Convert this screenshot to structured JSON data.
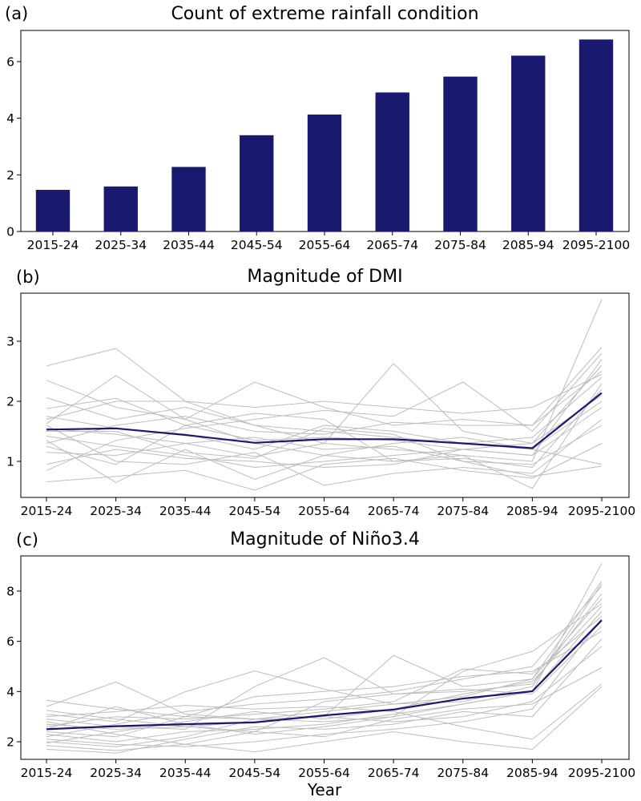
{
  "xlabel": "Year",
  "colors": {
    "bar": "#191970",
    "mean_line": "#191970",
    "member_line": "#bdbdbd"
  },
  "chart_data": [
    {
      "panel_label": "(a)",
      "type": "bar",
      "title": "Count of extreme rainfall condition",
      "categories": [
        "2015-24",
        "2025-34",
        "2035-44",
        "2045-54",
        "2055-64",
        "2065-74",
        "2075-84",
        "2085-94",
        "2095-2100"
      ],
      "values": [
        1.47,
        1.59,
        2.28,
        3.4,
        4.13,
        4.91,
        5.47,
        6.21,
        6.78
      ],
      "ylim": [
        0,
        7.1
      ],
      "yticks": [
        "0",
        "2",
        "4",
        "6"
      ],
      "xlabel": "",
      "ylabel": ""
    },
    {
      "panel_label": "(b)",
      "type": "line",
      "title": "Magnitude of DMI",
      "categories": [
        "2015-24",
        "2025-34",
        "2035-44",
        "2045-54",
        "2055-64",
        "2065-74",
        "2075-84",
        "2085-94",
        "2095-2100"
      ],
      "ylim": [
        0.4,
        3.8
      ],
      "yticks": [
        "1",
        "2",
        "3"
      ],
      "mean": [
        1.53,
        1.55,
        1.44,
        1.31,
        1.37,
        1.37,
        1.3,
        1.22,
        2.14
      ],
      "members": [
        [
          2.59,
          2.88,
          2.0,
          1.6,
          1.5,
          1.4,
          1.3,
          1.2,
          2.0
        ],
        [
          2.35,
          1.9,
          1.7,
          2.32,
          1.9,
          1.6,
          1.7,
          1.6,
          2.9
        ],
        [
          2.06,
          1.7,
          1.9,
          1.6,
          1.3,
          1.2,
          1.1,
          1.0,
          3.7
        ],
        [
          1.88,
          2.05,
          1.6,
          1.35,
          1.4,
          1.35,
          1.2,
          1.1,
          2.7
        ],
        [
          1.75,
          1.55,
          1.45,
          1.2,
          1.6,
          1.5,
          1.3,
          1.4,
          2.4
        ],
        [
          1.63,
          2.43,
          1.7,
          1.3,
          1.1,
          1.0,
          1.05,
          0.9,
          2.2
        ],
        [
          1.55,
          1.45,
          1.3,
          1.08,
          1.3,
          2.63,
          1.5,
          1.3,
          2.6
        ],
        [
          1.42,
          1.25,
          1.1,
          0.9,
          1.0,
          1.1,
          1.2,
          1.1,
          1.9
        ],
        [
          1.3,
          1.6,
          1.75,
          1.5,
          1.45,
          1.65,
          1.6,
          1.6,
          2.5
        ],
        [
          1.15,
          1.1,
          1.3,
          1.4,
          1.2,
          1.25,
          1.0,
          0.95,
          1.6
        ],
        [
          0.95,
          1.2,
          1.05,
          1.0,
          0.9,
          0.95,
          1.2,
          1.3,
          2.1
        ],
        [
          0.85,
          1.35,
          1.55,
          1.7,
          1.85,
          1.75,
          2.32,
          1.5,
          2.8
        ],
        [
          0.66,
          0.75,
          0.85,
          0.52,
          0.95,
          1.05,
          0.85,
          0.72,
          1.3
        ],
        [
          1.6,
          1.0,
          0.95,
          1.15,
          0.6,
          0.8,
          0.9,
          0.8,
          1.7
        ],
        [
          1.7,
          2.0,
          2.0,
          1.9,
          2.0,
          1.9,
          1.8,
          1.9,
          2.45
        ],
        [
          1.35,
          0.65,
          1.2,
          0.7,
          1.1,
          1.3,
          1.4,
          1.2,
          0.95
        ],
        [
          1.5,
          1.5,
          1.15,
          1.05,
          1.55,
          1.45,
          1.0,
          0.75,
          0.92
        ],
        [
          1.25,
          0.95,
          1.6,
          1.8,
          1.7,
          1.0,
          1.1,
          0.55,
          2.3
        ]
      ],
      "xlabel": "",
      "ylabel": ""
    },
    {
      "panel_label": "(c)",
      "type": "line",
      "title": "Magnitude of Niño3.4",
      "categories": [
        "2015-24",
        "2025-34",
        "2035-44",
        "2045-54",
        "2055-64",
        "2065-74",
        "2075-84",
        "2085-94",
        "2095-2100"
      ],
      "ylim": [
        1.3,
        9.4
      ],
      "yticks": [
        "2",
        "4",
        "6",
        "8"
      ],
      "mean": [
        2.5,
        2.62,
        2.7,
        2.77,
        3.05,
        3.28,
        3.72,
        4.01,
        6.84
      ],
      "members": [
        [
          3.65,
          3.3,
          3.0,
          2.9,
          2.8,
          3.0,
          3.5,
          4.0,
          9.1
        ],
        [
          3.4,
          4.38,
          3.1,
          2.9,
          3.2,
          3.5,
          3.8,
          4.5,
          8.4
        ],
        [
          3.1,
          2.8,
          3.99,
          4.82,
          4.1,
          3.5,
          3.6,
          4.2,
          8.3
        ],
        [
          2.9,
          2.6,
          2.5,
          4.2,
          5.35,
          3.9,
          4.0,
          4.3,
          7.9
        ],
        [
          2.7,
          2.5,
          2.6,
          2.8,
          3.0,
          5.44,
          4.2,
          4.5,
          7.7
        ],
        [
          2.5,
          3.4,
          2.7,
          2.3,
          2.6,
          3.0,
          4.8,
          5.6,
          7.5
        ],
        [
          2.3,
          2.0,
          2.4,
          2.5,
          2.7,
          3.1,
          3.5,
          4.0,
          7.2
        ],
        [
          2.1,
          1.9,
          1.8,
          2.0,
          2.3,
          2.5,
          2.8,
          3.3,
          6.9
        ],
        [
          1.85,
          1.65,
          1.9,
          2.4,
          3.6,
          3.9,
          4.1,
          3.9,
          6.6
        ],
        [
          1.7,
          1.55,
          2.1,
          2.6,
          2.5,
          2.7,
          3.2,
          3.0,
          6.1
        ],
        [
          3.0,
          3.2,
          3.45,
          3.3,
          3.4,
          3.2,
          2.6,
          2.1,
          4.3
        ],
        [
          2.8,
          2.3,
          1.9,
          1.6,
          2.0,
          2.4,
          2.0,
          1.7,
          4.2
        ],
        [
          2.2,
          2.7,
          3.2,
          3.5,
          3.7,
          4.0,
          4.5,
          5.0,
          8.2
        ],
        [
          2.6,
          3.0,
          2.9,
          3.1,
          3.3,
          3.6,
          4.9,
          4.7,
          7.0
        ],
        [
          2.0,
          1.8,
          2.2,
          2.9,
          3.0,
          2.8,
          3.0,
          3.6,
          5.8
        ],
        [
          2.4,
          2.2,
          3.0,
          3.8,
          4.0,
          4.2,
          4.6,
          4.8,
          6.4
        ],
        [
          3.25,
          2.9,
          2.6,
          2.4,
          2.2,
          2.9,
          3.3,
          3.5,
          4.95
        ],
        [
          1.95,
          2.4,
          2.8,
          3.2,
          2.9,
          3.3,
          3.9,
          4.4,
          7.4
        ]
      ],
      "xlabel": "Year",
      "ylabel": ""
    }
  ]
}
